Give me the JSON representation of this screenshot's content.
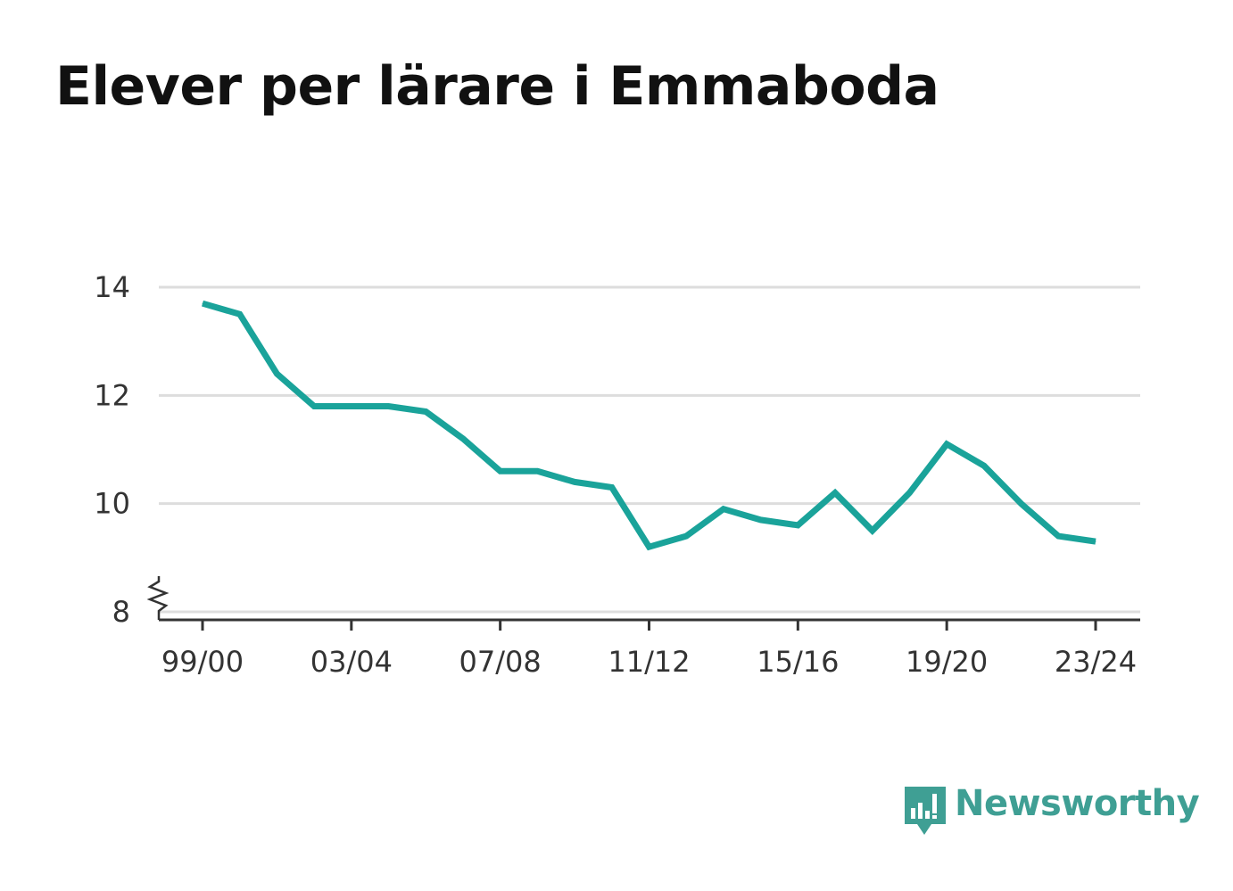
{
  "title": "Elever per lärare i Emmaboda",
  "brand": {
    "name": "Newsworthy",
    "color": "#3f9f94",
    "icon": "bar-chart-speech-bubble-icon"
  },
  "chart_data": {
    "type": "line",
    "title": "Elever per lärare i Emmaboda",
    "xlabel": "",
    "ylabel": "",
    "categories": [
      "99/00",
      "00/01",
      "01/02",
      "02/03",
      "03/04",
      "04/05",
      "05/06",
      "06/07",
      "07/08",
      "08/09",
      "09/10",
      "10/11",
      "11/12",
      "12/13",
      "13/14",
      "14/15",
      "15/16",
      "16/17",
      "17/18",
      "18/19",
      "19/20",
      "20/21",
      "21/22",
      "22/23",
      "23/24"
    ],
    "x_tick_labels": [
      "99/00",
      "03/04",
      "07/08",
      "11/12",
      "15/16",
      "19/20",
      "23/24"
    ],
    "series": [
      {
        "color": "#1aa39a",
        "values": [
          13.7,
          13.5,
          12.4,
          11.8,
          11.8,
          11.8,
          11.7,
          11.2,
          10.6,
          10.6,
          10.4,
          10.3,
          9.2,
          9.4,
          9.9,
          9.7,
          9.6,
          10.2,
          9.5,
          10.2,
          11.1,
          10.7,
          10.0,
          9.4,
          9.3
        ]
      }
    ],
    "y_ticks": [
      8,
      10,
      12,
      14
    ],
    "ylim": [
      8,
      14
    ],
    "y_axis_break": true,
    "grid": true,
    "legend": "none"
  }
}
